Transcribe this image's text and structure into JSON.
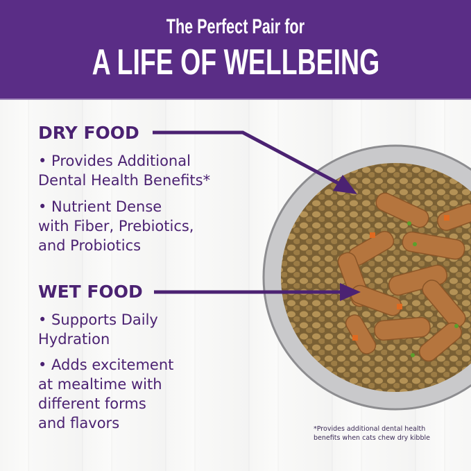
{
  "header": {
    "line1": "The Perfect Pair for",
    "line2": "A LIFE OF WELLBEING"
  },
  "dry": {
    "title": "DRY FOOD",
    "bullets": [
      [
        "• Provides Additional",
        "Dental Health Benefits*"
      ],
      [
        "• Nutrient Dense",
        "with Fiber, Prebiotics,",
        "and Probiotics"
      ]
    ]
  },
  "wet": {
    "title": "WET FOOD",
    "bullets": [
      [
        "• Supports Daily",
        "Hydration"
      ],
      [
        "• Adds excitement",
        "at mealtime with",
        "different forms",
        "and flavors"
      ]
    ]
  },
  "footnote": [
    "*Provides additional dental health",
    "benefits when cats chew dry kibble"
  ],
  "colors": {
    "brand_purple": "#5a2d86",
    "text_purple": "#4b2272"
  }
}
